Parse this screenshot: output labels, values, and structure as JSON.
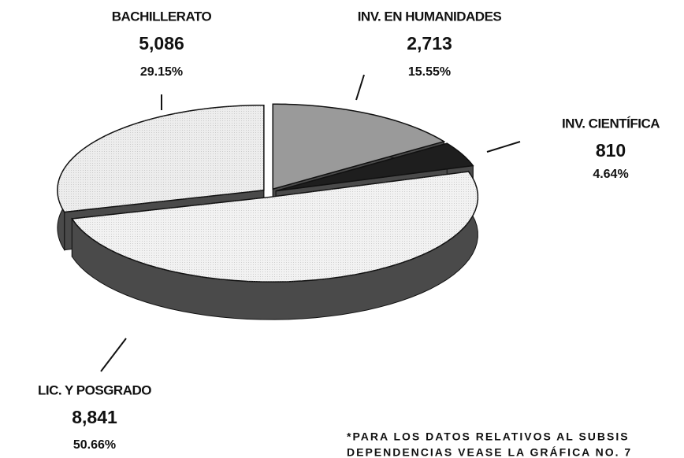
{
  "chart_data": {
    "type": "pie",
    "categories": [
      "INV. EN HUMANIDADES",
      "INV. CIENTÍFICA",
      "LIC. Y POSGRADO",
      "BACHILLERATO"
    ],
    "values": [
      2713,
      810,
      8841,
      5086
    ],
    "value_labels": [
      "2,713",
      "810",
      "8,841",
      "5,086"
    ],
    "percentages": [
      15.55,
      4.64,
      50.66,
      29.15
    ],
    "percentage_labels": [
      "15.55%",
      "4.64%",
      "50.66%",
      "29.15%"
    ],
    "colors": [
      "#9a9a9a",
      "#1e1e1e",
      "#f2f2f2",
      "#ededed"
    ],
    "footnote": [
      "*PARA LOS DATOS RELATIVOS AL SUBSIS",
      "DEPENDENCIAS VEASE LA GRÁFICA NO. 7"
    ]
  }
}
